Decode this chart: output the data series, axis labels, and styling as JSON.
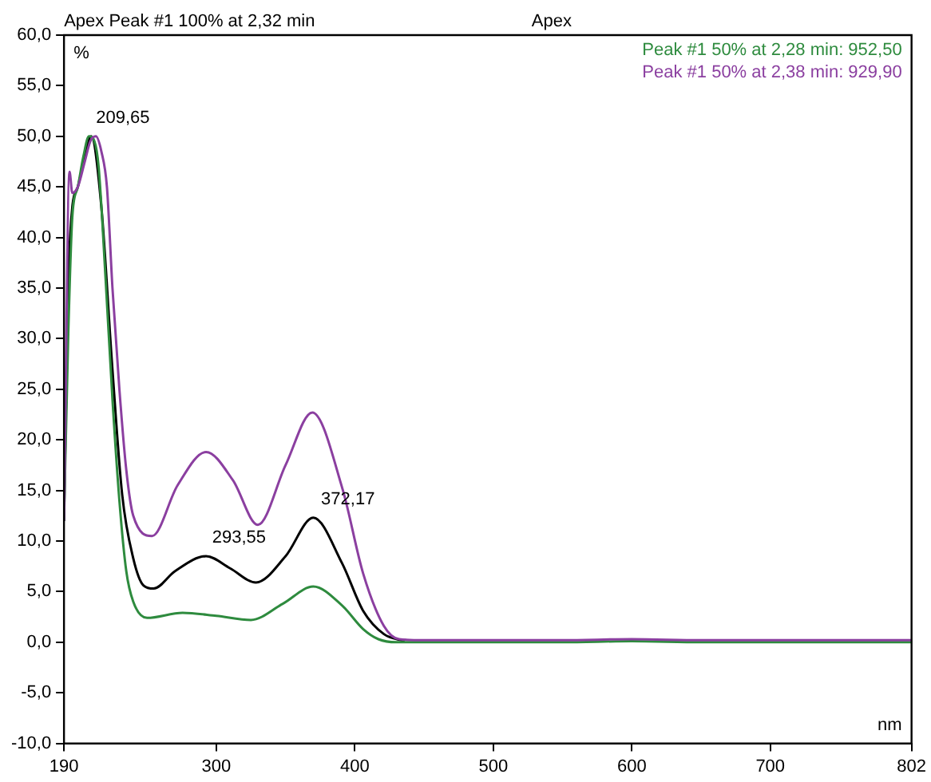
{
  "chart_data": {
    "type": "line",
    "title": "Apex Peak #1 100% at 2,32 min",
    "subtitle": "Apex",
    "xlabel": "nm",
    "ylabel": "%",
    "series": [
      {
        "color": "#000000",
        "x": [
          190,
          193,
          196,
          200,
          205,
          209.65,
          217,
          224.6,
          232,
          240,
          247.5,
          254.8,
          270,
          292.6,
          310,
          328.6,
          350,
          370,
          390.8,
          406,
          421,
          436
        ],
        "values": [
          12,
          35,
          43,
          45,
          48,
          50,
          43,
          27.7,
          14.6,
          8.3,
          5.6,
          5.3,
          7,
          8.5,
          7.3,
          5.9,
          8.5,
          12.3,
          7.8,
          3.1,
          0.8,
          0.1
        ]
      },
      {
        "name": "Peak #1 50% at 2,28 min: 952,50",
        "color": "#2e8b3e",
        "x": [
          190,
          193,
          196,
          200,
          204,
          208,
          212,
          215,
          220,
          225,
          230,
          235,
          240,
          250,
          275.6,
          300,
          325,
          348,
          370,
          391,
          406,
          417,
          430,
          450,
          500,
          550,
          600,
          650,
          700,
          750,
          802
        ],
        "values": [
          12,
          30,
          42,
          45,
          48,
          50,
          49.5,
          47,
          36,
          24,
          14,
          7,
          4,
          2.4,
          2.9,
          2.6,
          2.2,
          3.8,
          5.5,
          3.6,
          1.3,
          0.3,
          0,
          0,
          0,
          0,
          0.1,
          0,
          0,
          0,
          0
        ]
      },
      {
        "name": "Peak #1 50% at 2,38 min: 929,90",
        "color": "#8b3fa0",
        "x": [
          190,
          194,
          196,
          200,
          205,
          209,
          213,
          217,
          221,
          225,
          230,
          235,
          240,
          253.6,
          272,
          292.6,
          312,
          330,
          350,
          369.3,
          391,
          406,
          421,
          432,
          450,
          500,
          550,
          600,
          650,
          700,
          750,
          802
        ],
        "values": [
          12,
          46.5,
          44.4,
          45,
          47.5,
          49.5,
          50,
          48.5,
          45,
          35,
          25,
          17,
          12.5,
          10.5,
          15.5,
          18.8,
          16,
          11.6,
          17.5,
          22.7,
          15.2,
          6.8,
          1.6,
          0.3,
          0.2,
          0.2,
          0.2,
          0.3,
          0.2,
          0.2,
          0.2,
          0.2
        ]
      }
    ],
    "annotations": [
      {
        "text": "209,65",
        "x": 209.65,
        "y": 50
      },
      {
        "text": "293,55",
        "x": 293.55,
        "y": 8.5
      },
      {
        "text": "372,17",
        "x": 372.17,
        "y": 12.3
      }
    ],
    "xlim": [
      190,
      802
    ],
    "xticks": [
      190,
      300,
      400,
      500,
      600,
      700,
      802
    ],
    "ylim": [
      -10,
      60
    ],
    "yticks": [
      {
        "value": -10,
        "label": "-10,0"
      },
      {
        "value": -5,
        "label": "-5,0"
      },
      {
        "value": 0,
        "label": "0,0"
      },
      {
        "value": 5,
        "label": "5,0"
      },
      {
        "value": 10,
        "label": "10,0"
      },
      {
        "value": 15,
        "label": "15,0"
      },
      {
        "value": 20,
        "label": "20,0"
      },
      {
        "value": 25,
        "label": "25,0"
      },
      {
        "value": 30,
        "label": "30,0"
      },
      {
        "value": 35,
        "label": "35,0"
      },
      {
        "value": 40,
        "label": "40,0"
      },
      {
        "value": 45,
        "label": "45,0"
      },
      {
        "value": 50,
        "label": "50,0"
      },
      {
        "value": 55,
        "label": "55,0"
      },
      {
        "value": 60,
        "label": "60,0"
      }
    ],
    "grid": false,
    "legend": "top right",
    "marker": "none",
    "line_style": "solid"
  }
}
